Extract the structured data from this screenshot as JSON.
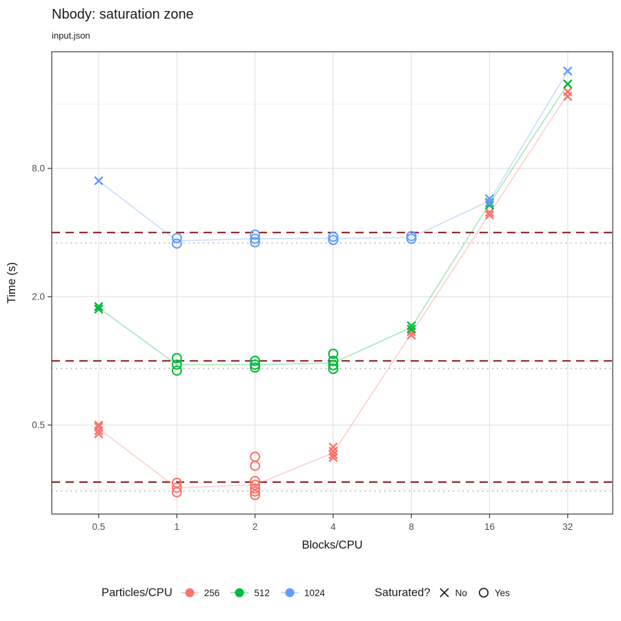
{
  "chart_data": {
    "type": "scatter",
    "title": "Nbody: saturation zone",
    "subtitle": "input.json",
    "xlabel": "Blocks/CPU",
    "ylabel": "Time (s)",
    "x_scale": "log2",
    "y_scale": "log2",
    "grid": true,
    "x_breaks": [
      {
        "value": 0.5,
        "label": "0.5"
      },
      {
        "value": 1,
        "label": "1"
      },
      {
        "value": 2,
        "label": "2"
      },
      {
        "value": 4,
        "label": "4"
      },
      {
        "value": 8,
        "label": "8"
      },
      {
        "value": 16,
        "label": "16"
      },
      {
        "value": 32,
        "label": "32"
      }
    ],
    "y_breaks": [
      {
        "value": 0.5,
        "label": "0.5"
      },
      {
        "value": 2,
        "label": "2.0"
      },
      {
        "value": 8,
        "label": "8.0"
      }
    ],
    "y_minor_breaks": [
      0.25,
      1,
      4,
      16
    ],
    "ylim": [
      0.2,
      28
    ],
    "series": [
      {
        "name": "256",
        "color": "#F8766D",
        "points": [
          {
            "x": 0.5,
            "saturated": false,
            "times": [
              0.5,
              0.49,
              0.47,
              0.455
            ]
          },
          {
            "x": 1,
            "saturated": true,
            "times": [
              0.268,
              0.254,
              0.242
            ]
          },
          {
            "x": 2,
            "saturated": true,
            "times": [
              0.355,
              0.322,
              0.273,
              0.262,
              0.252,
              0.244,
              0.235
            ]
          },
          {
            "x": 4,
            "saturated": false,
            "times": [
              0.394,
              0.377,
              0.363,
              0.352
            ]
          },
          {
            "x": 8,
            "saturated": false,
            "times": [
              1.37,
              1.32
            ]
          },
          {
            "x": 16,
            "saturated": false,
            "times": [
              4.97,
              4.83
            ]
          },
          {
            "x": 32,
            "saturated": false,
            "times": [
              18.3,
              17.4
            ]
          }
        ]
      },
      {
        "name": "512",
        "color": "#00BA38",
        "points": [
          {
            "x": 0.5,
            "saturated": false,
            "times": [
              1.8,
              1.75
            ]
          },
          {
            "x": 1,
            "saturated": true,
            "times": [
              1.03,
              0.96,
              0.9
            ]
          },
          {
            "x": 2,
            "saturated": true,
            "times": [
              1.0,
              0.96,
              0.93
            ]
          },
          {
            "x": 4,
            "saturated": true,
            "times": [
              1.08,
              1.0,
              0.955,
              0.917
            ]
          },
          {
            "x": 8,
            "saturated": false,
            "times": [
              1.46,
              1.41
            ]
          },
          {
            "x": 16,
            "saturated": false,
            "times": [
              5.54,
              5.38
            ]
          },
          {
            "x": 32,
            "saturated": false,
            "times": [
              19.9
            ]
          }
        ]
      },
      {
        "name": "1024",
        "color": "#619CFF",
        "points": [
          {
            "x": 0.5,
            "saturated": false,
            "times": [
              7.0
            ]
          },
          {
            "x": 1,
            "saturated": true,
            "times": [
              3.77,
              3.55
            ]
          },
          {
            "x": 2,
            "saturated": true,
            "times": [
              3.91,
              3.74,
              3.6
            ]
          },
          {
            "x": 4,
            "saturated": true,
            "times": [
              3.82,
              3.69
            ]
          },
          {
            "x": 8,
            "saturated": true,
            "times": [
              3.85,
              3.74
            ]
          },
          {
            "x": 16,
            "saturated": false,
            "times": [
              5.76,
              5.5
            ]
          },
          {
            "x": 32,
            "saturated": false,
            "times": [
              22.9
            ]
          }
        ]
      }
    ],
    "threshold_lines": {
      "dashed": {
        "color": "#962B2E",
        "style": "dashed",
        "values": [
          4.0,
          1.0,
          0.27
        ]
      },
      "dotted": {
        "color": "#B8B8B8",
        "style": "dotted",
        "values": [
          3.57,
          0.92,
          0.245
        ]
      }
    },
    "legend": {
      "color_title": "Particles/CPU",
      "color_entries": [
        {
          "label": "256",
          "color": "#F8766D"
        },
        {
          "label": "512",
          "color": "#00BA38"
        },
        {
          "label": "1024",
          "color": "#619CFF"
        }
      ],
      "shape_title": "Saturated?",
      "shape_entries": [
        {
          "label": "No",
          "shape": "x"
        },
        {
          "label": "Yes",
          "shape": "circle"
        }
      ]
    }
  }
}
